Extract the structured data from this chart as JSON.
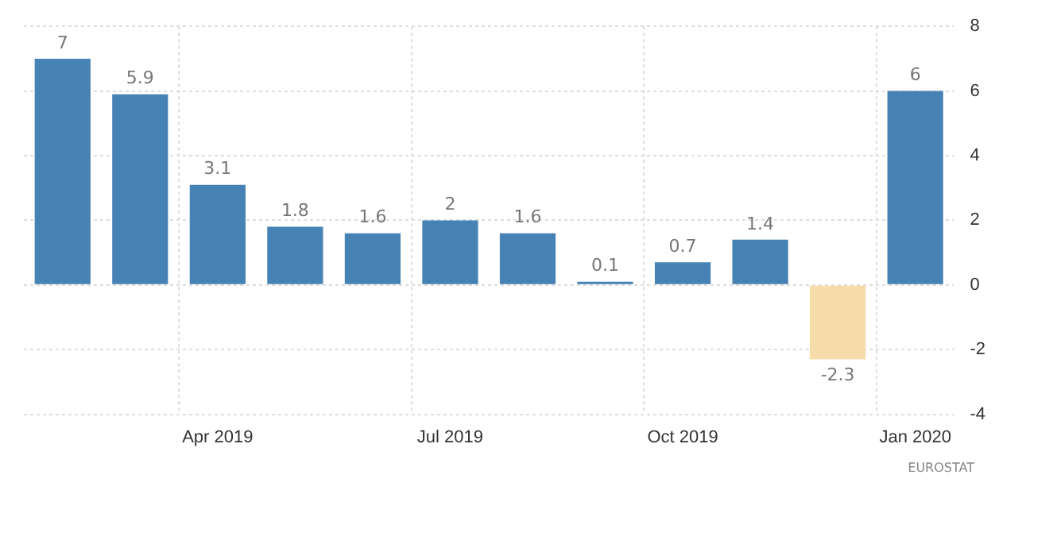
{
  "chart_data": {
    "type": "bar",
    "categories": [
      null,
      null,
      "Apr 2019",
      null,
      null,
      "Jul 2019",
      null,
      null,
      "Oct 2019",
      null,
      null,
      "Jan 2020"
    ],
    "values": [
      7,
      5.9,
      3.1,
      1.8,
      1.6,
      2,
      1.6,
      0.1,
      0.7,
      1.4,
      -2.3,
      6
    ],
    "colors": [
      "#4682b4",
      "#4682b4",
      "#4682b4",
      "#4682b4",
      "#4682b4",
      "#4682b4",
      "#4682b4",
      "#4682b4",
      "#4682b4",
      "#4682b4",
      "#f5dcaa",
      "#4682b4"
    ],
    "ylim": [
      -4,
      8
    ],
    "yticks": [
      -4,
      -2,
      0,
      2,
      4,
      6,
      8
    ],
    "grid": true,
    "data_labels": true,
    "annotations": [
      "EUROSTAT"
    ]
  }
}
